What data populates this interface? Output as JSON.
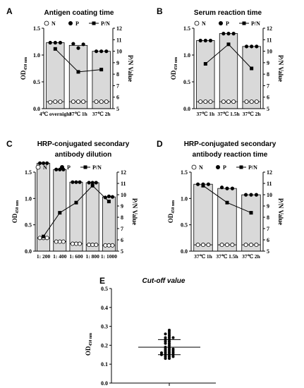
{
  "chart_data": [
    {
      "panel": "A",
      "type": "bar",
      "title": "Antigen coating  time",
      "ylabel": "OD",
      "ylabel_sub": "450 nm",
      "y2label": "P/N Value",
      "categories": [
        "4℃ overnight",
        "37℃ 1h",
        "37℃ 2h"
      ],
      "ylim": [
        0.0,
        1.5
      ],
      "yticks": [
        "0.0",
        "0.5",
        "1.0",
        "1.5"
      ],
      "y2lim": [
        5,
        12
      ],
      "y2ticks": [
        "5",
        "6",
        "7",
        "8",
        "9",
        "10",
        "11",
        "12"
      ],
      "legend": [
        "N",
        "P",
        "P/N"
      ],
      "legend_position": "top",
      "series": [
        {
          "name": "N",
          "values": [
            0.13,
            0.13,
            0.13
          ],
          "points": [
            [
              0.12,
              0.13,
              0.13
            ],
            [
              0.13,
              0.13,
              0.13
            ],
            [
              0.13,
              0.13,
              0.13
            ]
          ]
        },
        {
          "name": "P",
          "values": [
            1.23,
            1.18,
            1.07
          ],
          "points": [
            [
              1.23,
              1.23,
              1.23
            ],
            [
              1.21,
              1.13,
              1.2
            ],
            [
              1.07,
              1.07,
              1.07
            ]
          ]
        },
        {
          "name": "P/N",
          "values": [
            10.2,
            8.2,
            8.4
          ],
          "axis": "right"
        }
      ]
    },
    {
      "panel": "B",
      "type": "bar",
      "title": "Serum reaction time",
      "ylabel": "OD",
      "ylabel_sub": "450 nm",
      "y2label": "P/N Value",
      "categories": [
        "37℃ 1h",
        "37℃ 1.5h",
        "37℃ 2h"
      ],
      "ylim": [
        0.0,
        1.5
      ],
      "yticks": [
        "0.0",
        "0.5",
        "1.0",
        "1.5"
      ],
      "y2lim": [
        5,
        12
      ],
      "y2ticks": [
        "5",
        "6",
        "7",
        "8",
        "9",
        "10",
        "11",
        "12"
      ],
      "legend": [
        "N",
        "P",
        "P/N"
      ],
      "legend_position": "top",
      "series": [
        {
          "name": "N",
          "values": [
            0.13,
            0.13,
            0.13
          ],
          "points": [
            [
              0.13,
              0.13,
              0.13
            ],
            [
              0.13,
              0.13,
              0.13
            ],
            [
              0.13,
              0.13,
              0.13
            ]
          ]
        },
        {
          "name": "P",
          "values": [
            1.27,
            1.4,
            1.16
          ],
          "points": [
            [
              1.27,
              1.27,
              1.27
            ],
            [
              1.4,
              1.4,
              1.4
            ],
            [
              1.16,
              1.16,
              1.16
            ]
          ]
        },
        {
          "name": "P/N",
          "values": [
            8.9,
            10.6,
            8.5
          ],
          "axis": "right"
        }
      ]
    },
    {
      "panel": "C",
      "type": "bar",
      "title": "HRP-conjugated secondary",
      "title2": "antibody dilution",
      "ylabel": "OD",
      "ylabel_sub": "450 nm",
      "y2label": "P/N Value",
      "categories": [
        "1: 200",
        "1: 400",
        "1: 600",
        "1: 800",
        "1: 1000"
      ],
      "ylim": [
        0.0,
        1.5
      ],
      "yticks": [
        "0.0",
        "0.5",
        "1.0",
        "1.5"
      ],
      "y2lim": [
        5,
        12
      ],
      "y2ticks": [
        "5",
        "6",
        "7",
        "8",
        "9",
        "10",
        "11",
        "12"
      ],
      "legend": [
        "N",
        "P",
        "P/N"
      ],
      "legend_position": "top",
      "series": [
        {
          "name": "N",
          "values": [
            0.25,
            0.18,
            0.14,
            0.12,
            0.11
          ],
          "points": [
            [
              0.25,
              0.25,
              0.25
            ],
            [
              0.18,
              0.18,
              0.18
            ],
            [
              0.14,
              0.14,
              0.14
            ],
            [
              0.12,
              0.12,
              0.12
            ],
            [
              0.11,
              0.11,
              0.11
            ]
          ]
        },
        {
          "name": "P",
          "values": [
            1.67,
            1.55,
            1.31,
            1.3,
            1.03
          ],
          "points": [
            [
              1.67,
              1.67,
              1.67
            ],
            [
              1.55,
              1.55,
              1.55
            ],
            [
              1.31,
              1.31,
              1.31
            ],
            [
              1.3,
              1.3,
              1.3
            ],
            [
              1.02,
              1.04,
              1.03
            ]
          ]
        },
        {
          "name": "P/N",
          "values": [
            6.3,
            8.4,
            9.3,
            10.8,
            9.4
          ],
          "axis": "right"
        }
      ]
    },
    {
      "panel": "D",
      "type": "bar",
      "title": "HRP-conjugated secondary",
      "title2": "antibody reaction time",
      "ylabel": "OD",
      "ylabel_sub": "450 nm",
      "y2label": "P/N Value",
      "categories": [
        "37℃ 1h",
        "37℃ 1.5h",
        "37℃ 2h"
      ],
      "ylim": [
        0.0,
        1.5
      ],
      "yticks": [
        "0.0",
        "0.5",
        "1.0",
        "1.5"
      ],
      "y2lim": [
        5,
        12
      ],
      "y2ticks": [
        "5",
        "6",
        "7",
        "8",
        "9",
        "10",
        "11",
        "12"
      ],
      "legend": [
        "N",
        "P",
        "P/N"
      ],
      "legend_position": "top",
      "series": [
        {
          "name": "N",
          "values": [
            0.12,
            0.12,
            0.12
          ],
          "points": [
            [
              0.12,
              0.12,
              0.12
            ],
            [
              0.12,
              0.12,
              0.12
            ],
            [
              0.12,
              0.12,
              0.12
            ]
          ]
        },
        {
          "name": "P",
          "values": [
            1.27,
            1.19,
            1.07
          ],
          "points": [
            [
              1.27,
              1.27,
              1.27
            ],
            [
              1.21,
              1.19,
              1.19
            ],
            [
              1.07,
              1.07,
              1.07
            ]
          ]
        },
        {
          "name": "P/N",
          "values": [
            10.8,
            9.3,
            8.4
          ],
          "axis": "right"
        }
      ]
    },
    {
      "panel": "E",
      "type": "scatter",
      "title": "Cut-off value",
      "title_style": "italic",
      "ylabel": "OD",
      "ylabel_sub": "450 nm",
      "ylim": [
        0.0,
        0.5
      ],
      "yticks": [
        "0.0",
        "0.1",
        "0.2",
        "0.3",
        "0.4",
        "0.5"
      ],
      "mean": 0.19,
      "sd": 0.04,
      "values": [
        0.28,
        0.27,
        0.26,
        0.26,
        0.25,
        0.24,
        0.24,
        0.24,
        0.23,
        0.23,
        0.22,
        0.22,
        0.21,
        0.21,
        0.2,
        0.19,
        0.19,
        0.18,
        0.18,
        0.18,
        0.17,
        0.17,
        0.17,
        0.16,
        0.16,
        0.16,
        0.16,
        0.15,
        0.15,
        0.15,
        0.15,
        0.14,
        0.14,
        0.14,
        0.13,
        0.13
      ]
    }
  ]
}
